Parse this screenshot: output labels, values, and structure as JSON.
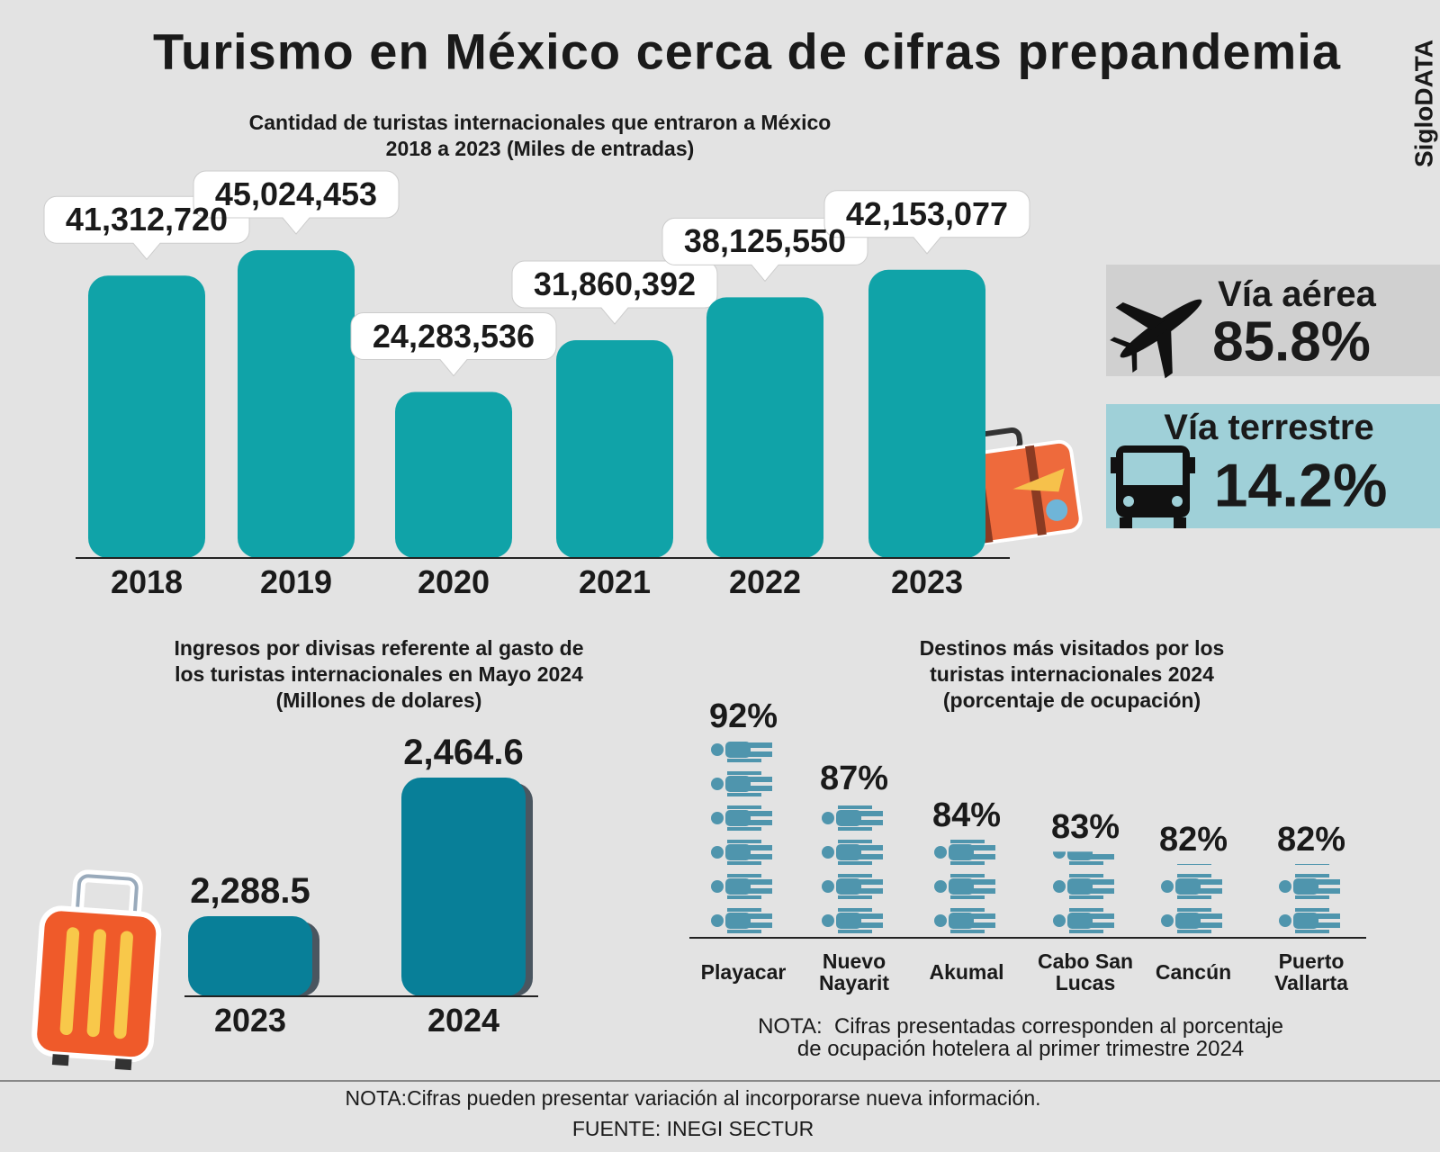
{
  "title": "Turismo en México cerca de cifras prepandemia",
  "brand": "SigloDATA",
  "transport": [
    {
      "label": "Vía aérea",
      "value": "85.8%"
    },
    {
      "label": "Vía terrestre",
      "value": "14.2%"
    }
  ],
  "chart_data": [
    {
      "type": "bar",
      "title": "Cantidad de turistas internacionales que entraron a México\n2018 a 2023 (Miles de entradas)",
      "categories": [
        "2018",
        "2019",
        "2020",
        "2021",
        "2022",
        "2023"
      ],
      "values": [
        41312720,
        45024453,
        24283536,
        31860392,
        38125550,
        42153077
      ],
      "value_labels": [
        "41,312,720",
        "45,024,453",
        "24,283,536",
        "31,860,392",
        "38,125,550",
        "42,153,077"
      ],
      "color": "#10a3a8"
    },
    {
      "type": "bar",
      "title": "Ingresos por divisas referente al gasto de\nlos turistas internacionales en Mayo 2024\n(Millones de dolares)",
      "categories": [
        "2023",
        "2024"
      ],
      "values": [
        2288.5,
        2464.6
      ],
      "value_labels": [
        "2,288.5",
        "2,464.6"
      ],
      "color": "#087f98"
    },
    {
      "type": "pictogram",
      "title": "Destinos más visitados por los\nturistas internacionales 2024\n(porcentaje de ocupación)",
      "categories": [
        "Playacar",
        "Nuevo\nNayarit",
        "Akumal",
        "Cabo San\nLucas",
        "Cancún",
        "Puerto\nVallarta"
      ],
      "values": [
        92,
        87,
        84,
        83,
        82,
        82
      ],
      "value_labels": [
        "92%",
        "87%",
        "84%",
        "83%",
        "82%",
        "82%"
      ],
      "color": "#4f95ad",
      "note": "NOTA:  Cifras presentadas corresponden al porcentaje\nde ocupación hotelera al primer trimestre 2024"
    }
  ],
  "footer": {
    "note": "NOTA:Cifras pueden presentar variación al incorporarse nueva información.",
    "source": "FUENTE: INEGI SECTUR"
  }
}
